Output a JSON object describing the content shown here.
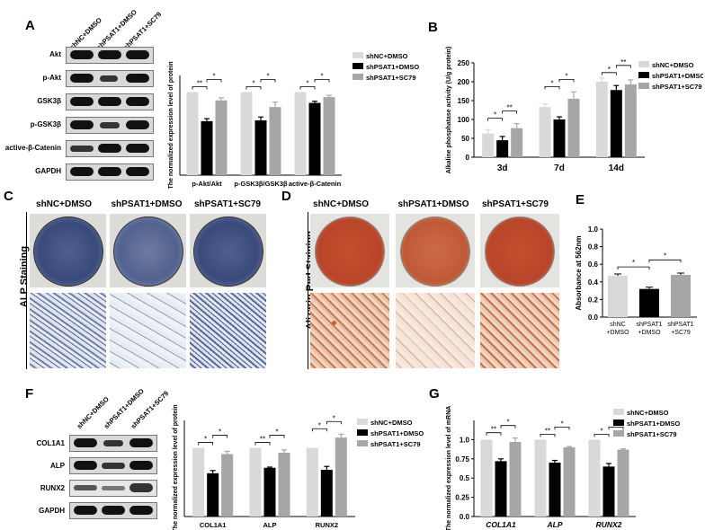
{
  "panels": {
    "A": "A",
    "B": "B",
    "C": "C",
    "D": "D",
    "E": "E",
    "F": "F",
    "G": "G"
  },
  "groups": [
    "shNC+DMSO",
    "shPSAT1+DMSO",
    "shPSAT1+SC79"
  ],
  "colors": {
    "c1": "#d9d9d9",
    "c2": "#000000",
    "c3": "#a6a6a6",
    "stain_blue": "#3a4a7a",
    "stain_red": "#b8452a"
  },
  "panelA_blots": [
    "Akt",
    "p-Akt",
    "GSK3β",
    "p-GSK3β",
    "active-β-Catenin",
    "GAPDH"
  ],
  "panelF_blots": [
    "COL1A1",
    "ALP",
    "RUNX2",
    "GAPDH"
  ],
  "panelC": {
    "side_label": "ALP Staining"
  },
  "panelD": {
    "side_label": "Alizarin Red Staining"
  },
  "chart_data": [
    {
      "id": "A",
      "type": "bar",
      "ylabel": "The normalized expression level of protein",
      "categories": [
        "p-Akt/Akt",
        "p-GSK3β/GSK3β",
        "active-β-Catenin"
      ],
      "ylim": [
        0,
        1.2
      ],
      "series": [
        {
          "name": "shNC+DMSO",
          "values": [
            1.0,
            1.0,
            1.0
          ],
          "err": [
            0,
            0,
            0
          ]
        },
        {
          "name": "shPSAT1+DMSO",
          "values": [
            0.65,
            0.66,
            0.87
          ],
          "err": [
            0.03,
            0.04,
            0.02
          ]
        },
        {
          "name": "shPSAT1+SC79",
          "values": [
            0.9,
            0.82,
            0.94
          ],
          "err": [
            0.03,
            0.06,
            0.02
          ]
        }
      ],
      "sig": [
        [
          "**",
          "*"
        ],
        [
          "*",
          "*"
        ],
        [
          "*",
          "*"
        ]
      ]
    },
    {
      "id": "B",
      "type": "bar",
      "ylabel": "Alkaline phosphatase activity (U/g protein)",
      "yticks": [
        0,
        50,
        100,
        150,
        200,
        250
      ],
      "categories": [
        "3d",
        "7d",
        "14d"
      ],
      "ylim": [
        0,
        250
      ],
      "series": [
        {
          "name": "shNC+DMSO",
          "values": [
            63,
            133,
            200
          ],
          "err": [
            10,
            8,
            10
          ]
        },
        {
          "name": "shPSAT1+DMSO",
          "values": [
            45,
            100,
            178
          ],
          "err": [
            10,
            7,
            12
          ]
        },
        {
          "name": "shPSAT1+SC79",
          "values": [
            77,
            155,
            193
          ],
          "err": [
            12,
            18,
            12
          ]
        }
      ],
      "sig": [
        [
          "*",
          "**"
        ],
        [
          "*",
          "*"
        ],
        [
          "*",
          "**"
        ]
      ]
    },
    {
      "id": "E",
      "type": "bar",
      "ylabel": "Absorbance at 562nm",
      "yticks": [
        0.0,
        0.2,
        0.4,
        0.6,
        0.8,
        1.0
      ],
      "categories": [
        "shNC +DMSO",
        "shPSAT1 +DMSO",
        "shPSAT1 +SC79"
      ],
      "ylim": [
        0,
        1.0
      ],
      "values": [
        0.47,
        0.32,
        0.48
      ],
      "err": [
        0.02,
        0.02,
        0.02
      ]
    },
    {
      "id": "F",
      "type": "bar",
      "ylabel": "The normalized expression level of protein",
      "categories": [
        "COL1A1",
        "ALP",
        "RUNX2"
      ],
      "ylim": [
        0,
        1.4
      ],
      "series": [
        {
          "name": "shNC+DMSO",
          "values": [
            1.0,
            1.0,
            1.0
          ],
          "err": [
            0,
            0,
            0
          ]
        },
        {
          "name": "shPSAT1+DMSO",
          "values": [
            0.63,
            0.71,
            0.68
          ],
          "err": [
            0.04,
            0.01,
            0.05
          ]
        },
        {
          "name": "shPSAT1+SC79",
          "values": [
            0.91,
            0.93,
            1.15
          ],
          "err": [
            0.04,
            0.04,
            0.05
          ]
        }
      ],
      "sig": [
        [
          "*",
          "*"
        ],
        [
          "**",
          "*"
        ],
        [
          "*",
          "*"
        ]
      ]
    },
    {
      "id": "G",
      "type": "bar",
      "ylabel": "The normalized expression level of mRNA",
      "yticks": [
        0.0,
        0.25,
        0.5,
        0.75,
        1.0
      ],
      "categories": [
        "COL1A1",
        "ALP",
        "RUNX2"
      ],
      "ylim": [
        0,
        1.25
      ],
      "series": [
        {
          "name": "shNC+DMSO",
          "values": [
            1.0,
            1.0,
            1.0
          ],
          "err": [
            0,
            0,
            0
          ]
        },
        {
          "name": "shPSAT1+DMSO",
          "values": [
            0.72,
            0.7,
            0.65
          ],
          "err": [
            0.03,
            0.03,
            0.04
          ]
        },
        {
          "name": "shPSAT1+SC79",
          "values": [
            0.97,
            0.9,
            0.87
          ],
          "err": [
            0.05,
            0.01,
            0.01
          ]
        }
      ],
      "sig": [
        [
          "**",
          "*"
        ],
        [
          "**",
          "*"
        ],
        [
          "*",
          "*"
        ]
      ]
    }
  ]
}
